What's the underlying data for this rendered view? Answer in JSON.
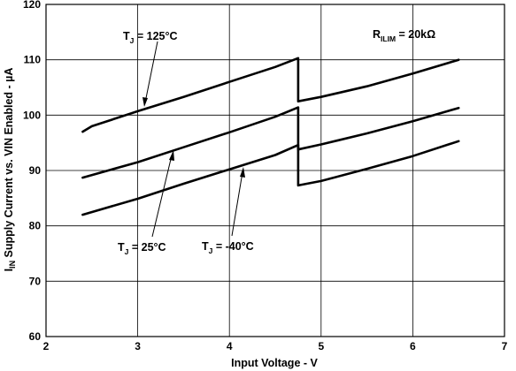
{
  "chart_data": {
    "type": "line",
    "xlabel": "Input Voltage - V",
    "ylabel": {
      "prefix": "I",
      "sub": "IN",
      "rest": " Supply Current vs. VIN Enabled - µA"
    },
    "xlim": [
      2,
      7
    ],
    "ylim": [
      60,
      120
    ],
    "xticks": [
      2,
      3,
      4,
      5,
      6,
      7
    ],
    "yticks": [
      60,
      70,
      80,
      90,
      100,
      110,
      120
    ],
    "grid": true,
    "series": [
      {
        "name": {
          "main": "T",
          "sub": "J",
          "rest": " = 125°C"
        },
        "points": [
          [
            2.4,
            97.0
          ],
          [
            2.5,
            98.0
          ],
          [
            3.0,
            100.7
          ],
          [
            3.5,
            103.3
          ],
          [
            4.0,
            106.0
          ],
          [
            4.5,
            108.7
          ],
          [
            4.75,
            110.3
          ],
          [
            4.75,
            102.5
          ],
          [
            5.0,
            103.3
          ],
          [
            5.5,
            105.2
          ],
          [
            6.0,
            107.5
          ],
          [
            6.5,
            110.0
          ]
        ]
      },
      {
        "name": {
          "main": "T",
          "sub": "J",
          "rest": " = 25°C"
        },
        "points": [
          [
            2.4,
            88.7
          ],
          [
            3.0,
            91.5
          ],
          [
            3.5,
            94.2
          ],
          [
            4.0,
            96.9
          ],
          [
            4.5,
            99.7
          ],
          [
            4.75,
            101.4
          ],
          [
            4.75,
            93.8
          ],
          [
            5.0,
            94.7
          ],
          [
            5.5,
            96.7
          ],
          [
            6.0,
            98.9
          ],
          [
            6.5,
            101.3
          ]
        ]
      },
      {
        "name": {
          "main": "T",
          "sub": "J",
          "rest": " = -40°C"
        },
        "points": [
          [
            2.4,
            82.0
          ],
          [
            3.0,
            84.9
          ],
          [
            3.5,
            87.6
          ],
          [
            4.0,
            90.2
          ],
          [
            4.5,
            92.8
          ],
          [
            4.75,
            94.6
          ],
          [
            4.75,
            87.3
          ],
          [
            5.0,
            88.1
          ],
          [
            5.5,
            90.3
          ],
          [
            6.0,
            92.6
          ],
          [
            6.5,
            95.3
          ]
        ]
      }
    ],
    "annotations": [
      {
        "main": "R",
        "sub": "ILIM",
        "rest": " = 20kΩ"
      }
    ]
  }
}
